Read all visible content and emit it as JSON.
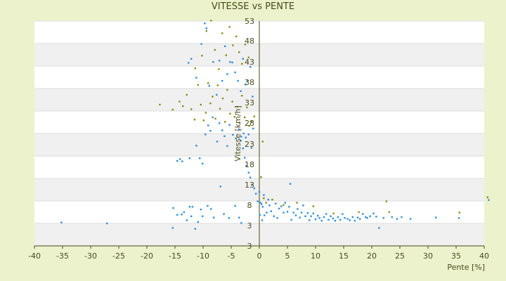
{
  "chart_data": {
    "type": "scatter",
    "title": "VITESSE vs PENTE",
    "xlabel": "Pente [%]",
    "ylabel": "Vitesse [km/h]",
    "xlim": [
      -40,
      40
    ],
    "ylim": [
      3,
      53
    ],
    "x_ticks": [
      "-40",
      "-35",
      "-30",
      "-25",
      "-20",
      "-15",
      "-10",
      "-5",
      "0",
      "5",
      "10",
      "15",
      "20",
      "25",
      "30",
      "35",
      "40"
    ],
    "y_ticks": [
      "3",
      "3",
      "8",
      "13",
      "18",
      "23",
      "28",
      "33",
      "38",
      "43",
      "48",
      "53"
    ],
    "grid": "horizontal bands",
    "series": [
      {
        "color": "#2e8ddb",
        "points": [
          [
            -35.2,
            8.2
          ],
          [
            -27.1,
            8.0
          ],
          [
            -15.3,
            11.4
          ],
          [
            -15.4,
            7.0
          ],
          [
            -14.6,
            9.9
          ],
          [
            -13.8,
            10.0
          ],
          [
            -13.4,
            10.5
          ],
          [
            -12.9,
            8.7
          ],
          [
            -12.4,
            11.7
          ],
          [
            -12.1,
            9.6
          ],
          [
            -11.9,
            11.7
          ],
          [
            -11.4,
            6.8
          ],
          [
            -10.9,
            8.3
          ],
          [
            -10.4,
            11.1
          ],
          [
            -10.1,
            9.6
          ],
          [
            -9.2,
            11.9
          ],
          [
            -8.6,
            11.2
          ],
          [
            -8.1,
            9.3
          ],
          [
            -6.9,
            16.2
          ],
          [
            -6.3,
            10.1
          ],
          [
            -5.4,
            9.2
          ],
          [
            -4.3,
            11.9
          ],
          [
            -3.6,
            9.3
          ],
          [
            -3.2,
            8.1
          ],
          [
            -14.6,
            21.9
          ],
          [
            -14.1,
            22.3
          ],
          [
            -13.7,
            21.8
          ],
          [
            -12.4,
            22.5
          ],
          [
            -11.2,
            25.3
          ],
          [
            -10.6,
            22.5
          ],
          [
            -10.1,
            21.3
          ],
          [
            -9.6,
            27.8
          ],
          [
            -9.1,
            29.8
          ],
          [
            -8.7,
            28.6
          ],
          [
            -8.3,
            31.6
          ],
          [
            -7.5,
            26.2
          ],
          [
            -7.1,
            30.3
          ],
          [
            -6.6,
            28.7
          ],
          [
            -6.2,
            27.4
          ],
          [
            -5.7,
            25.2
          ],
          [
            -5.3,
            29.9
          ],
          [
            -4.7,
            27.7
          ],
          [
            -4.2,
            26.9
          ],
          [
            -3.6,
            28.9
          ],
          [
            -3.2,
            27.3
          ],
          [
            -2.8,
            28.0
          ],
          [
            -2.4,
            27.1
          ],
          [
            -1.9,
            27.8
          ],
          [
            -1.4,
            24.8
          ],
          [
            -1.1,
            29.1
          ],
          [
            -12.6,
            43.7
          ],
          [
            -12.1,
            44.6
          ],
          [
            -11.2,
            40.4
          ],
          [
            -10.3,
            47.9
          ],
          [
            -9.7,
            52.5
          ],
          [
            -9.4,
            51.4
          ],
          [
            -8.9,
            38.6
          ],
          [
            -8.2,
            43.9
          ],
          [
            -7.6,
            36.6
          ],
          [
            -7.1,
            44.2
          ],
          [
            -6.6,
            39.7
          ],
          [
            -6.1,
            47.4
          ],
          [
            -5.7,
            41.2
          ],
          [
            -5.2,
            43.9
          ],
          [
            -4.8,
            43.8
          ],
          [
            -4.3,
            41.6
          ],
          [
            -3.8,
            39.7
          ],
          [
            -3.3,
            37.4
          ],
          [
            -2.9,
            44.6
          ],
          [
            -2.5,
            38.9
          ],
          [
            -2.1,
            39.8
          ],
          [
            -1.6,
            42.8
          ],
          [
            -1.2,
            36.2
          ],
          [
            -3.3,
            26.4
          ],
          [
            -2.9,
            24.7
          ],
          [
            -2.6,
            22.6
          ],
          [
            -2.3,
            20.8
          ],
          [
            -1.9,
            19.3
          ],
          [
            -1.6,
            18.2
          ],
          [
            -1.3,
            16.6
          ],
          [
            -0.9,
            15.8
          ],
          [
            -0.6,
            14.6
          ],
          [
            -0.3,
            12.9
          ],
          [
            0.0,
            15.0
          ],
          [
            0.1,
            9.9
          ],
          [
            0.4,
            12.3
          ],
          [
            0.2,
            12.6
          ],
          [
            0.6,
            11.7
          ],
          [
            0.5,
            8.7
          ],
          [
            0.8,
            14.3
          ],
          [
            0.9,
            9.8
          ],
          [
            1.3,
            10.4
          ],
          [
            1.6,
            13.3
          ],
          [
            1.8,
            12.0
          ],
          [
            2.1,
            10.7
          ],
          [
            2.6,
            9.6
          ],
          [
            2.9,
            12.4
          ],
          [
            3.2,
            9.2
          ],
          [
            3.5,
            11.3
          ],
          [
            3.9,
            11.8
          ],
          [
            4.3,
            10.4
          ],
          [
            4.6,
            12.6
          ],
          [
            5.0,
            10.6
          ],
          [
            5.3,
            11.7
          ],
          [
            5.5,
            16.8
          ],
          [
            5.7,
            8.8
          ],
          [
            6.1,
            10.4
          ],
          [
            6.5,
            9.8
          ],
          [
            6.8,
            11.2
          ],
          [
            7.2,
            9.3
          ],
          [
            7.5,
            10.4
          ],
          [
            7.8,
            12.0
          ],
          [
            8.2,
            9.6
          ],
          [
            8.6,
            10.3
          ],
          [
            8.9,
            8.7
          ],
          [
            9.2,
            9.6
          ],
          [
            9.6,
            10.2
          ],
          [
            10.0,
            8.9
          ],
          [
            10.4,
            9.7
          ],
          [
            10.7,
            9.2
          ],
          [
            11.1,
            8.6
          ],
          [
            11.5,
            9.4
          ],
          [
            11.9,
            10.1
          ],
          [
            12.3,
            8.8
          ],
          [
            12.7,
            9.6
          ],
          [
            13.1,
            9.1
          ],
          [
            13.5,
            8.6
          ],
          [
            14.0,
            9.4
          ],
          [
            14.4,
            8.8
          ],
          [
            14.8,
            10.1
          ],
          [
            15.2,
            9.2
          ],
          [
            15.7,
            9.0
          ],
          [
            16.1,
            8.7
          ],
          [
            16.6,
            9.4
          ],
          [
            17.0,
            8.6
          ],
          [
            17.5,
            9.3
          ],
          [
            17.9,
            9.0
          ],
          [
            18.4,
            10.1
          ],
          [
            18.9,
            9.4
          ],
          [
            19.2,
            9.2
          ],
          [
            19.7,
            9.6
          ],
          [
            20.3,
            10.2
          ],
          [
            20.8,
            9.5
          ],
          [
            21.3,
            7.0
          ],
          [
            22.1,
            9.2
          ],
          [
            23.6,
            9.4
          ],
          [
            24.5,
            9.0
          ],
          [
            25.3,
            9.4
          ],
          [
            26.9,
            9.0
          ],
          [
            31.4,
            9.3
          ],
          [
            35.5,
            9.2
          ],
          [
            40.8,
            13.2
          ]
        ]
      },
      {
        "color": "#8a8a18",
        "points": [
          [
            -17.7,
            34.4
          ],
          [
            -15.4,
            33.3
          ],
          [
            -14.2,
            35.1
          ],
          [
            -13.6,
            34.1
          ],
          [
            -12.9,
            36.6
          ],
          [
            -12.1,
            33.4
          ],
          [
            -11.5,
            31.1
          ],
          [
            -10.9,
            38.8
          ],
          [
            -10.4,
            34.4
          ],
          [
            -9.9,
            30.9
          ],
          [
            -9.5,
            32.6
          ],
          [
            -9.1,
            39.2
          ],
          [
            -8.7,
            34.7
          ],
          [
            -8.3,
            36.2
          ],
          [
            -7.8,
            31.3
          ],
          [
            -7.4,
            38.7
          ],
          [
            -7.0,
            33.5
          ],
          [
            -6.5,
            35.8
          ],
          [
            -6.1,
            30.6
          ],
          [
            -5.7,
            37.7
          ],
          [
            -5.2,
            32.4
          ],
          [
            -4.8,
            35.1
          ],
          [
            -4.4,
            31.7
          ],
          [
            -3.9,
            33.9
          ],
          [
            -3.5,
            30.4
          ],
          [
            -3.1,
            36.4
          ],
          [
            -2.6,
            31.6
          ],
          [
            -2.2,
            33.8
          ],
          [
            -1.8,
            29.7
          ],
          [
            -1.4,
            30.7
          ],
          [
            -0.9,
            31.8
          ],
          [
            -11.4,
            42.5
          ],
          [
            -10.2,
            45.3
          ],
          [
            -9.4,
            50.8
          ],
          [
            -8.6,
            53.1
          ],
          [
            -7.9,
            46.6
          ],
          [
            -7.2,
            42.3
          ],
          [
            -6.6,
            50.3
          ],
          [
            -5.9,
            45.4
          ],
          [
            -5.3,
            51.7
          ],
          [
            -4.7,
            47.6
          ],
          [
            -4.1,
            49.6
          ],
          [
            -3.6,
            46.1
          ],
          [
            -3.1,
            43.5
          ],
          [
            -2.5,
            47.8
          ],
          [
            -1.9,
            44.9
          ],
          [
            0.6,
            26.2
          ],
          [
            0.3,
            18.3
          ],
          [
            0.8,
            13.6
          ],
          [
            1.2,
            12.6
          ],
          [
            2.3,
            13.3
          ],
          [
            4.3,
            12.1
          ],
          [
            6.7,
            12.6
          ],
          [
            9.6,
            11.8
          ],
          [
            13.2,
            10.2
          ],
          [
            17.7,
            10.5
          ],
          [
            22.6,
            12.9
          ],
          [
            23.1,
            10.5
          ],
          [
            35.6,
            10.4
          ],
          [
            40.6,
            13.8
          ]
        ]
      }
    ]
  }
}
